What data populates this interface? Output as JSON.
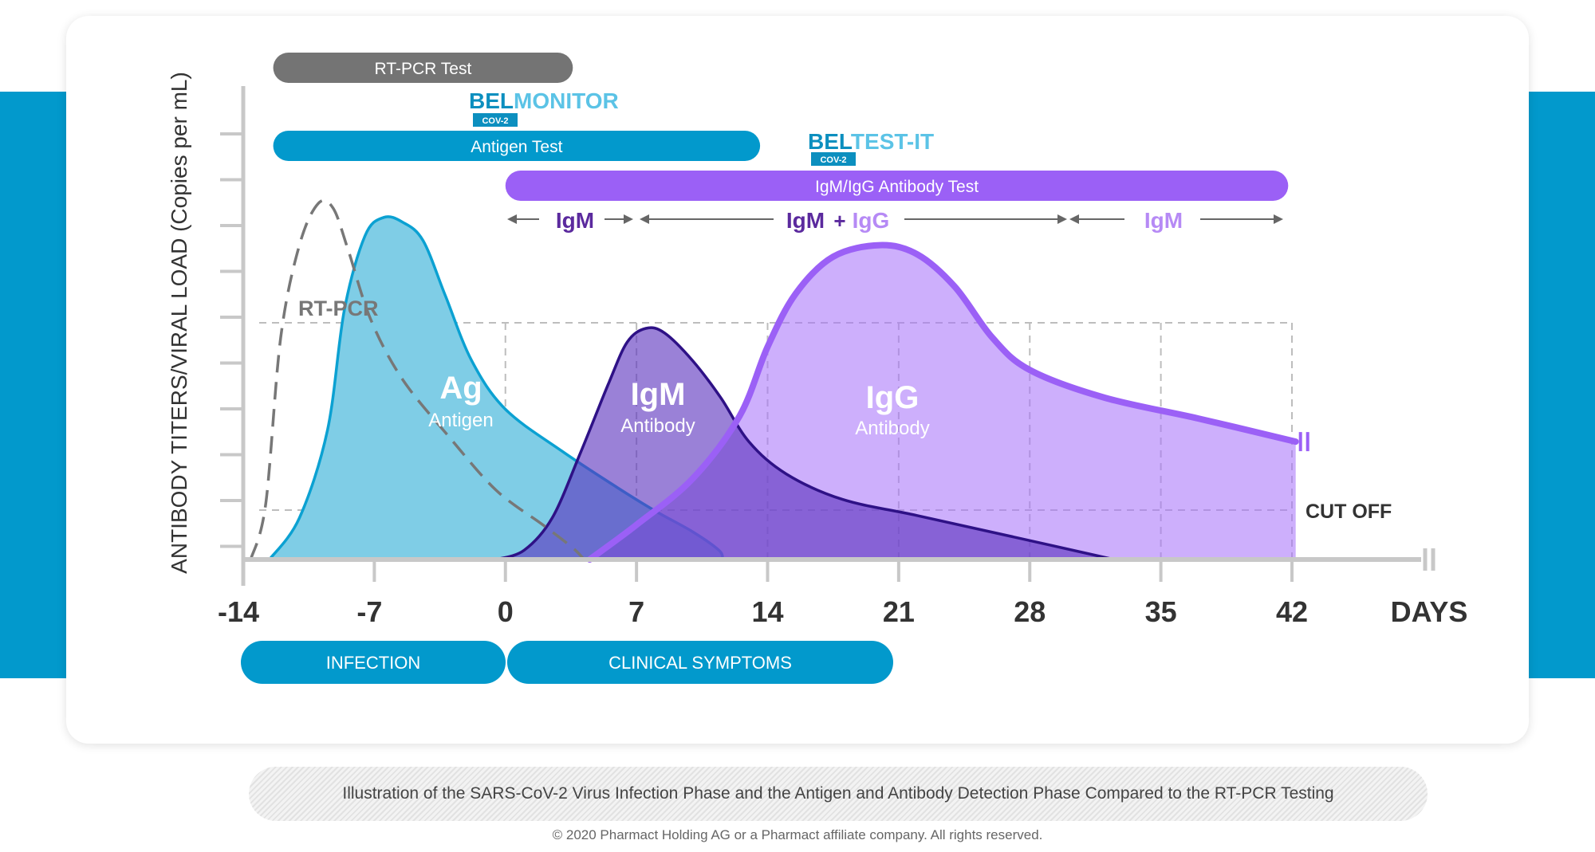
{
  "chart_data": {
    "type": "area",
    "ylabel": "ANTIBODY TITERS/VIRAL LOAD (Copies per mL)",
    "xlabel": "DAYS",
    "x_ticks": [
      -14,
      -7,
      0,
      7,
      14,
      21,
      28,
      35,
      42
    ],
    "x_tick_labels": [
      "-14",
      "-7",
      "0",
      "7",
      "14",
      "21",
      "28",
      "35",
      "42"
    ],
    "xlim": [
      -14,
      48
    ],
    "cutoff_label": "CUT OFF",
    "grid": "dashed",
    "series": [
      {
        "name": "RT-PCR",
        "style": "dashed-line",
        "color": "#777777",
        "x": [
          -13.6,
          -12.8,
          -12,
          -11,
          -10,
          -9.2,
          -8.4,
          -7.2,
          -5.5,
          -3,
          -0.5,
          2,
          3.6,
          4.2
        ],
        "y": [
          0,
          1.2,
          4.8,
          6.8,
          7.7,
          7.6,
          6.7,
          5.2,
          3.9,
          2.65,
          1.5,
          0.75,
          0.25,
          0
        ]
      },
      {
        "name": "Ag",
        "sub": "Antigen",
        "style": "area",
        "color": "#0ba1d2",
        "fill": "#7fcde6",
        "x": [
          -12.6,
          -11,
          -9.5,
          -8.6,
          -7.5,
          -6.5,
          -5.5,
          -4.4,
          -3.2,
          -1.8,
          0,
          3,
          6,
          8,
          10,
          11.4,
          11.6
        ],
        "y": [
          0,
          0.9,
          2.8,
          5.4,
          7.0,
          7.4,
          7.3,
          6.9,
          5.7,
          4.3,
          3.25,
          2.35,
          1.55,
          1.05,
          0.6,
          0.2,
          0
        ]
      },
      {
        "name": "IgM",
        "sub": "Antibody",
        "style": "area",
        "color": "#2e1186",
        "fill": "rgba(92,52,190,0.62)",
        "x": [
          -0.5,
          1,
          2.5,
          4,
          5.5,
          6.5,
          7.5,
          8.5,
          10,
          11.5,
          13,
          15,
          18,
          22,
          27,
          32.5
        ],
        "y": [
          0,
          0.2,
          0.9,
          2.3,
          3.8,
          4.7,
          5.0,
          4.9,
          4.3,
          3.5,
          2.55,
          1.85,
          1.3,
          0.95,
          0.5,
          0
        ]
      },
      {
        "name": "IgG",
        "sub": "Antibody",
        "style": "area",
        "color": "#9b60f6",
        "fill": "rgba(168,118,250,0.58)",
        "x": [
          4.5,
          7,
          10,
          12.5,
          14,
          15.5,
          17.5,
          20,
          22,
          24,
          26,
          28,
          32,
          37,
          42.2
        ],
        "y": [
          0,
          0.75,
          1.75,
          3.1,
          4.6,
          5.75,
          6.55,
          6.8,
          6.6,
          5.9,
          4.8,
          4.1,
          3.5,
          3.05,
          2.55
        ]
      }
    ]
  },
  "test_bars": [
    {
      "label": "RT-PCR Test",
      "from": -12.4,
      "to": 3.6,
      "color": "#747474"
    },
    {
      "label": "Antigen Test",
      "from": -12.4,
      "to": 13.6,
      "color": "#0299cc"
    },
    {
      "label": "IgM/IgG Antibody Test",
      "from": 0,
      "to": 41.8,
      "color": "#9b60f6"
    }
  ],
  "brands": [
    {
      "name_a": "BEL",
      "name_b": "MONITOR",
      "badge": "COV-2"
    },
    {
      "name_a": "BEL",
      "name_b": "TEST-IT",
      "badge": "COV-2"
    }
  ],
  "antibody_ranges": {
    "igm": "IgM",
    "plus": "+",
    "igg": "IgG"
  },
  "phases": [
    {
      "label": "INFECTION"
    },
    {
      "label": "CLINICAL SYMPTOMS"
    }
  ],
  "caption": "Illustration of the SARS-CoV-2 Virus Infection Phase and the Antigen and Antibody Detection Phase Compared to the RT-PCR Testing",
  "copyright": "© 2020 Pharmact Holding AG or a Pharmact affiliate company.  All rights reserved."
}
